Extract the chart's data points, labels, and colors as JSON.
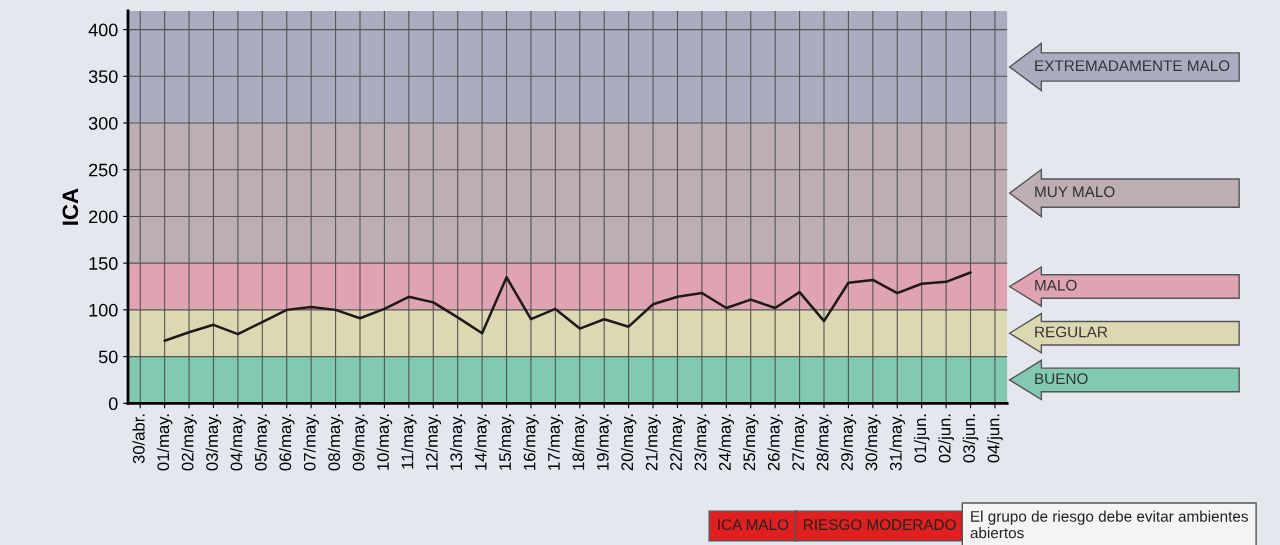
{
  "chart_data": {
    "type": "line",
    "ylabel": "ICA",
    "categories": [
      "30/abr.",
      "01/may.",
      "02/may.",
      "03/may.",
      "04/may.",
      "05/may.",
      "06/may.",
      "07/may.",
      "08/may.",
      "09/may.",
      "10/may.",
      "11/may.",
      "12/may.",
      "13/may.",
      "14/may.",
      "15/may.",
      "16/may.",
      "17/may.",
      "18/may.",
      "19/may.",
      "20/may.",
      "21/may.",
      "22/may.",
      "23/may.",
      "24/may.",
      "25/may.",
      "26/may.",
      "27/may.",
      "28/may.",
      "29/may.",
      "30/may.",
      "31/may.",
      "01/jun.",
      "02/jun.",
      "03/jun.",
      "04/jun."
    ],
    "series": [
      {
        "color": "#1e1a1c",
        "values": [
          null,
          67,
          76,
          84,
          74,
          87,
          100,
          103,
          100,
          91,
          101,
          114,
          108,
          92,
          75,
          135,
          90,
          101,
          80,
          90,
          82,
          106,
          114,
          118,
          102,
          111,
          102,
          119,
          88,
          129,
          132,
          118,
          128,
          130,
          140,
          null
        ]
      }
    ],
    "ylim": [
      0,
      420
    ],
    "yticks": [
      0,
      50,
      100,
      150,
      200,
      250,
      300,
      350,
      400
    ],
    "grid": true,
    "marker": "none",
    "line_style": "solid",
    "bands": [
      {
        "axis": "y",
        "from": 0,
        "to": 50,
        "label": "BUENO",
        "color": "#82c9b2"
      },
      {
        "axis": "y",
        "from": 50,
        "to": 100,
        "label": "REGULAR",
        "color": "#dcd8b2"
      },
      {
        "axis": "y",
        "from": 100,
        "to": 150,
        "label": "MALO",
        "color": "#dfa3b2"
      },
      {
        "axis": "y",
        "from": 150,
        "to": 300,
        "label": "MUY MALO",
        "color": "#bdaeb4"
      },
      {
        "axis": "y",
        "from": 300,
        "to": 420,
        "label": "EXTREMADAMENTE MALO",
        "color": "#a9adbf"
      }
    ],
    "annotations": [
      "ICA MALO",
      "RIESGO MODERADO",
      "El grupo de riesgo debe evitar ambientes abiertos"
    ]
  }
}
